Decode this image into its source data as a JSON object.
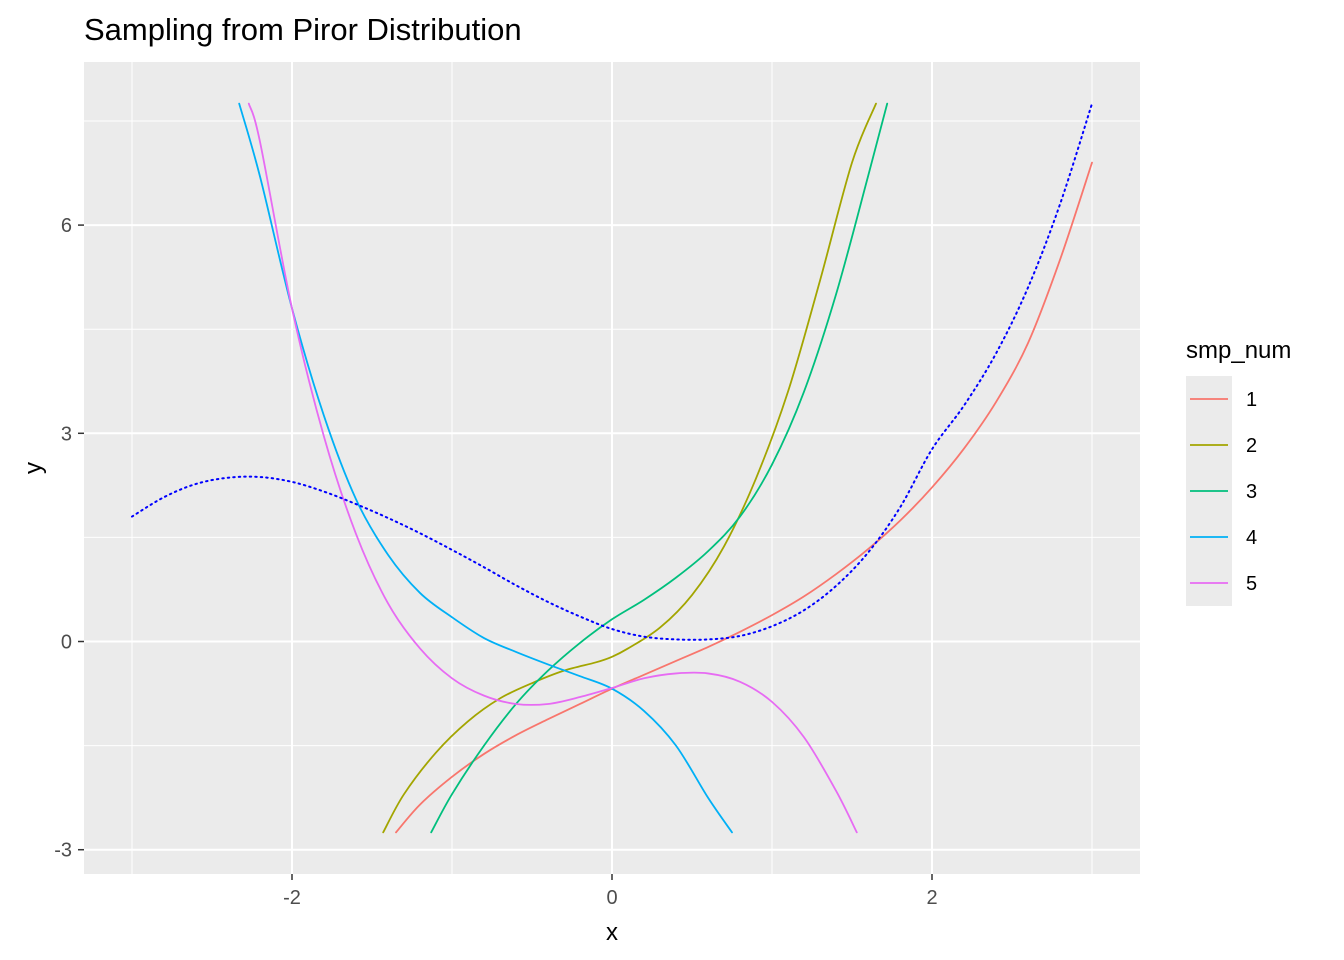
{
  "chart_data": {
    "type": "line",
    "title": "Sampling from Piror Distribution",
    "xlabel": "x",
    "ylabel": "y",
    "xlim": [
      -3.3,
      3.3
    ],
    "ylim": [
      -3.35,
      8.35
    ],
    "x_ticks": [
      -2,
      0,
      2
    ],
    "x_tick_labels": [
      "-2",
      "0",
      "2"
    ],
    "y_ticks": [
      -3,
      0,
      3,
      6
    ],
    "y_tick_labels": [
      "-3",
      "0",
      "3",
      "6"
    ],
    "grid": true,
    "legend": {
      "title": "smp_num",
      "placement": "right"
    },
    "series": [
      {
        "name": "1",
        "color": "#F8766D",
        "style": "solid",
        "x": [
          -1.35,
          -1.2,
          -1.0,
          -0.8,
          -0.6,
          -0.4,
          -0.2,
          0.0,
          0.2,
          0.4,
          0.6,
          0.8,
          1.0,
          1.2,
          1.4,
          1.6,
          1.8,
          2.0,
          2.2,
          2.4,
          2.6,
          2.8,
          3.0
        ],
        "y": [
          -2.75,
          -2.35,
          -1.95,
          -1.62,
          -1.35,
          -1.12,
          -0.9,
          -0.68,
          -0.48,
          -0.28,
          -0.08,
          0.14,
          0.38,
          0.65,
          0.97,
          1.33,
          1.74,
          2.22,
          2.78,
          3.45,
          4.3,
          5.5,
          6.9
        ]
      },
      {
        "name": "2",
        "color": "#A3A500",
        "style": "solid",
        "x": [
          -1.43,
          -1.3,
          -1.1,
          -0.9,
          -0.7,
          -0.5,
          -0.3,
          -0.1,
          0.0,
          0.1,
          0.3,
          0.5,
          0.7,
          0.9,
          1.1,
          1.3,
          1.5,
          1.65
        ],
        "y": [
          -2.75,
          -2.2,
          -1.6,
          -1.15,
          -0.82,
          -0.6,
          -0.42,
          -0.3,
          -0.22,
          -0.1,
          0.2,
          0.67,
          1.37,
          2.35,
          3.6,
          5.2,
          6.9,
          7.75
        ]
      },
      {
        "name": "3",
        "color": "#00BF7D",
        "style": "solid",
        "x": [
          -1.13,
          -1.0,
          -0.8,
          -0.6,
          -0.4,
          -0.2,
          0.0,
          0.2,
          0.4,
          0.6,
          0.8,
          1.0,
          1.2,
          1.4,
          1.6,
          1.72
        ],
        "y": [
          -2.75,
          -2.2,
          -1.5,
          -0.9,
          -0.42,
          -0.02,
          0.32,
          0.6,
          0.92,
          1.3,
          1.8,
          2.55,
          3.6,
          5.0,
          6.7,
          7.75
        ]
      },
      {
        "name": "4",
        "color": "#00B0F6",
        "style": "solid",
        "x": [
          -2.33,
          -2.2,
          -2.0,
          -1.8,
          -1.6,
          -1.4,
          -1.2,
          -1.0,
          -0.8,
          -0.6,
          -0.4,
          -0.2,
          0.0,
          0.2,
          0.4,
          0.6,
          0.75
        ],
        "y": [
          7.75,
          6.7,
          4.8,
          3.25,
          2.05,
          1.25,
          0.7,
          0.35,
          0.05,
          -0.15,
          -0.33,
          -0.5,
          -0.68,
          -1.0,
          -1.5,
          -2.25,
          -2.75
        ]
      },
      {
        "name": "5",
        "color": "#E76BF3",
        "style": "solid",
        "x": [
          -2.27,
          -2.2,
          -2.0,
          -1.8,
          -1.6,
          -1.4,
          -1.2,
          -1.0,
          -0.8,
          -0.6,
          -0.4,
          -0.2,
          0.0,
          0.2,
          0.4,
          0.6,
          0.8,
          1.0,
          1.2,
          1.4,
          1.53
        ],
        "y": [
          7.75,
          7.2,
          4.8,
          2.95,
          1.55,
          0.55,
          -0.1,
          -0.53,
          -0.78,
          -0.9,
          -0.9,
          -0.8,
          -0.67,
          -0.53,
          -0.46,
          -0.46,
          -0.58,
          -0.87,
          -1.38,
          -2.15,
          -2.75
        ]
      },
      {
        "name": "",
        "color": "#0000FF",
        "style": "dotted",
        "x": [
          -3.0,
          -2.8,
          -2.6,
          -2.4,
          -2.2,
          -2.0,
          -1.8,
          -1.6,
          -1.4,
          -1.2,
          -1.0,
          -0.8,
          -0.6,
          -0.4,
          -0.2,
          0.0,
          0.2,
          0.4,
          0.6,
          0.8,
          1.0,
          1.2,
          1.4,
          1.6,
          1.8,
          2.0,
          2.2,
          2.4,
          2.6,
          2.8,
          3.0
        ],
        "y": [
          1.8,
          2.08,
          2.27,
          2.36,
          2.37,
          2.3,
          2.16,
          1.98,
          1.78,
          1.56,
          1.32,
          1.07,
          0.81,
          0.57,
          0.36,
          0.18,
          0.07,
          0.03,
          0.03,
          0.08,
          0.22,
          0.45,
          0.8,
          1.28,
          1.93,
          2.77,
          3.4,
          4.15,
          5.1,
          6.3,
          7.75
        ]
      }
    ]
  }
}
